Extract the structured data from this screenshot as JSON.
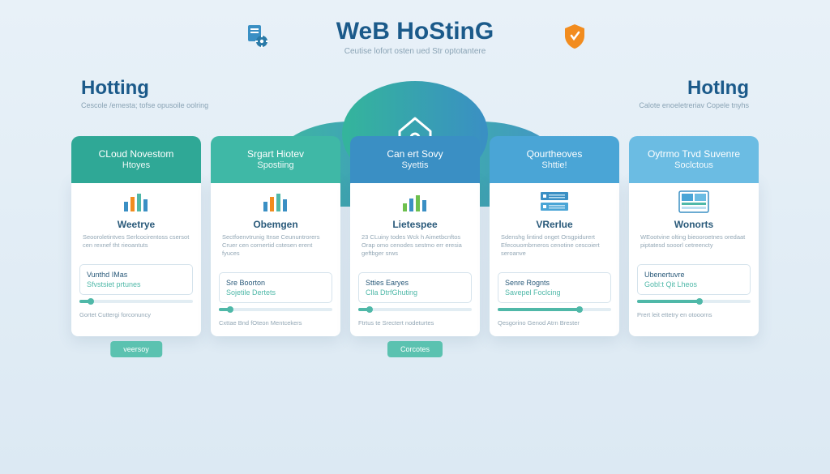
{
  "colors": {
    "bg_top": "#e8f1f8",
    "bg_bottom": "#dce9f3",
    "title": "#1b5a8a",
    "muted": "#8aa3b5",
    "card_bg": "#ffffff",
    "teal": "#4fb8a8",
    "teal_cta": "#5bc2b0",
    "blue": "#3a8fc4",
    "blue_mid": "#4aa5d6",
    "blue_light": "#6bbce3",
    "orange": "#f28c1f",
    "green_bar": "#6ec04e",
    "divider": "#d5e3ec"
  },
  "header": {
    "title": "WeB HoStinG",
    "subtitle": "Ceutise lofort osten ued Str optotantere",
    "left_icon": "document-gear-icon",
    "right_icon": "shield-icon"
  },
  "side_left": {
    "title": "Hotting",
    "sub": "Cescole /emesta; tofse opusoile oolring"
  },
  "side_right": {
    "title": "HotIng",
    "sub": "Calote enoeletreriav Copele tnyhs"
  },
  "cloud": {
    "gradient_from": "#34b59b",
    "gradient_to": "#3a8fc4",
    "icon": "house-network-icon"
  },
  "cards": [
    {
      "tab_bg": "#2fa896",
      "tab_title": "CLoud Novestom",
      "tab_sub": "Htoyes",
      "icon": "bar-chart-icon",
      "feature_title": "Weetrye",
      "feature_desc": "Seooroletintves Serlcocirentoss csersot cen rexnef tht rieoantuts",
      "pill1": "Vunthd IMas",
      "pill2": "Sfvstsiet prtunes",
      "progress_pct": 10,
      "progress_color": "#4fb8a8",
      "footer": "Gortet Cuttergi forconuncy",
      "cta": "veersoy"
    },
    {
      "tab_bg": "#3fb8a6",
      "tab_title": "Srgart Hiotev",
      "tab_sub": "Spostiing",
      "icon": "bar-chart-icon",
      "feature_title": "Obemgen",
      "feature_desc": "Sectfoenvtrunig Itnse Ceununtrorers Cruer cen cornertid cstesen erent fyuces",
      "pill1": "Sre Boorton",
      "pill2": "Sojetile Dertets",
      "progress_pct": 10,
      "progress_color": "#4fb8a8",
      "footer": "Cxttae Bnd fOteon Mentcekers",
      "cta": ""
    },
    {
      "tab_bg": "#3a8fc4",
      "tab_title": "Can ert Sovy",
      "tab_sub": "Syettis",
      "icon": "bar-chart-green-icon",
      "feature_title": "Lietespee",
      "feature_desc": "23 CLuiny todes Wck h Aimetbcnftos Orap omo cenodes sestmo err eresia geftbger srws",
      "pill1": "Stties Earyes",
      "pill2": "Clla DtrfGhuting",
      "progress_pct": 10,
      "progress_color": "#4fb8a8",
      "footer": "Ftrtus te Srectert nodeturtes",
      "cta": "Corcotes"
    },
    {
      "tab_bg": "#4aa5d6",
      "tab_title": "Qourtheoves",
      "tab_sub": "Shttie!",
      "icon": "server-stack-icon",
      "feature_title": "VRerlue",
      "feature_desc": "Sdenshg lintind onget Orsgpidurert Efecouombrneros cenotine cescoiert seroanve",
      "pill1": "Senre Rognts",
      "pill2": "Savepel Foclcing",
      "progress_pct": 72,
      "progress_color": "#4fb8a8",
      "footer": "Qesgorino Genod Atrn Brester",
      "cta": ""
    },
    {
      "tab_bg": "#6bbce3",
      "tab_title": "Oytrmo Trvd Suvenre",
      "tab_sub": "Soclctous",
      "icon": "dashboard-icon",
      "feature_title": "Wonorts",
      "feature_desc": "WEootvine olting bieooroetnes oredaat piptatesd sooorl cetreencty",
      "pill1": "Ubenertuvre",
      "pill2": "Gobl:t Qit Lheos",
      "progress_pct": 55,
      "progress_color": "#4fb8a8",
      "footer": "Prert leit ettetry en otooorns",
      "cta": ""
    }
  ]
}
